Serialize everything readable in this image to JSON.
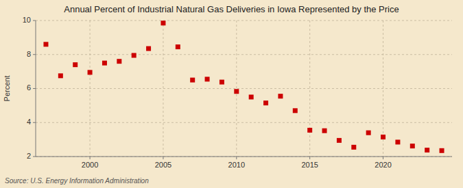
{
  "chart_data": {
    "type": "scatter",
    "title": "Annual Percent of Industrial Natural Gas Deliveries in Iowa Represented by the Price",
    "ylabel": "Percent",
    "source": "Source: U.S. Energy Information Administration",
    "x": [
      1997,
      1998,
      1999,
      2000,
      2001,
      2002,
      2003,
      2004,
      2005,
      2006,
      2007,
      2008,
      2009,
      2010,
      2011,
      2012,
      2013,
      2014,
      2015,
      2016,
      2017,
      2018,
      2019,
      2020,
      2021,
      2022,
      2023,
      2024
    ],
    "values": [
      8.6,
      6.75,
      7.4,
      6.95,
      7.5,
      7.6,
      7.95,
      8.35,
      9.85,
      8.45,
      6.5,
      6.55,
      6.38,
      5.83,
      5.5,
      5.15,
      5.55,
      4.7,
      3.55,
      3.52,
      2.95,
      2.55,
      3.4,
      3.15,
      2.85,
      2.62,
      2.38,
      2.35
    ],
    "color": "#cc0000",
    "marker": "square",
    "xlim": [
      1996.3,
      2024.7
    ],
    "xticks": [
      2000,
      2005,
      2010,
      2015,
      2020
    ],
    "ylim": [
      2,
      10
    ],
    "yticks": [
      2,
      4,
      6,
      8,
      10
    ],
    "grid": true
  }
}
